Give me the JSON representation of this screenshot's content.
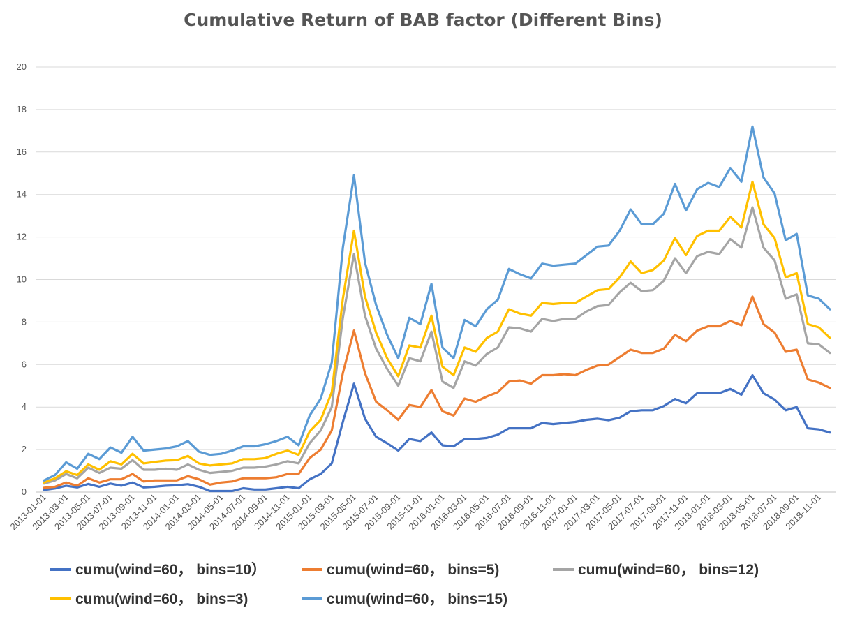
{
  "chart_data": {
    "type": "line",
    "title": "Cumulative Return of BAB factor (Different Bins)",
    "xlabel": "",
    "ylabel": "",
    "ylim": [
      0,
      20
    ],
    "yticks": [
      0,
      2,
      4,
      6,
      8,
      10,
      12,
      14,
      16,
      18,
      20
    ],
    "grid": true,
    "legend_position": "bottom",
    "x": [
      "2013-01-01",
      "2013-02-01",
      "2013-03-01",
      "2013-04-01",
      "2013-05-01",
      "2013-06-01",
      "2013-07-01",
      "2013-08-01",
      "2013-09-01",
      "2013-10-01",
      "2013-11-01",
      "2013-12-01",
      "2014-01-01",
      "2014-02-01",
      "2014-03-01",
      "2014-04-01",
      "2014-05-01",
      "2014-06-01",
      "2014-07-01",
      "2014-08-01",
      "2014-09-01",
      "2014-10-01",
      "2014-11-01",
      "2014-12-01",
      "2015-01-01",
      "2015-02-01",
      "2015-03-01",
      "2015-04-01",
      "2015-05-01",
      "2015-06-01",
      "2015-07-01",
      "2015-08-01",
      "2015-09-01",
      "2015-10-01",
      "2015-11-01",
      "2015-12-01",
      "2016-01-01",
      "2016-02-01",
      "2016-03-01",
      "2016-04-01",
      "2016-05-01",
      "2016-06-01",
      "2016-07-01",
      "2016-08-01",
      "2016-09-01",
      "2016-10-01",
      "2016-11-01",
      "2016-12-01",
      "2017-01-01",
      "2017-02-01",
      "2017-03-01",
      "2017-04-01",
      "2017-05-01",
      "2017-06-01",
      "2017-07-01",
      "2017-08-01",
      "2017-09-01",
      "2017-10-01",
      "2017-11-01",
      "2017-12-01",
      "2018-01-01",
      "2018-02-01",
      "2018-03-01",
      "2018-04-01",
      "2018-05-01",
      "2018-06-01",
      "2018-07-01",
      "2018-08-01",
      "2018-09-01",
      "2018-10-01",
      "2018-11-01",
      "2018-12-01"
    ],
    "x_tick_labels": [
      "2013-01-01",
      "2013-03-01",
      "2013-05-01",
      "2013-07-01",
      "2013-09-01",
      "2013-11-01",
      "2014-01-01",
      "2014-03-01",
      "2014-05-01",
      "2014-07-01",
      "2014-09-01",
      "2014-11-01",
      "2015-01-01",
      "2015-03-01",
      "2015-05-01",
      "2015-07-01",
      "2015-09-01",
      "2015-11-01",
      "2016-01-01",
      "2016-03-01",
      "2016-05-01",
      "2016-07-01",
      "2016-09-01",
      "2016-11-01",
      "2017-01-01",
      "2017-03-01",
      "2017-05-01",
      "2017-07-01",
      "2017-09-01",
      "2017-11-01",
      "2018-01-01",
      "2018-03-01",
      "2018-05-01",
      "2018-07-01",
      "2018-09-01",
      "2018-11-01"
    ],
    "series": [
      {
        "name": "cumu(wind=60， bins=10）",
        "color": "#4472C4",
        "values": [
          0.1,
          0.17,
          0.3,
          0.22,
          0.38,
          0.25,
          0.4,
          0.3,
          0.45,
          0.22,
          0.25,
          0.3,
          0.32,
          0.37,
          0.25,
          0.05,
          0.05,
          0.05,
          0.18,
          0.12,
          0.12,
          0.18,
          0.25,
          0.18,
          0.6,
          0.85,
          1.35,
          3.3,
          5.1,
          3.45,
          2.6,
          2.3,
          1.95,
          2.5,
          2.4,
          2.8,
          2.2,
          2.15,
          2.5,
          2.5,
          2.55,
          2.7,
          3.0,
          3.0,
          3.0,
          3.25,
          3.2,
          3.25,
          3.3,
          3.4,
          3.45,
          3.38,
          3.5,
          3.8,
          3.85,
          3.85,
          4.05,
          4.38,
          4.18,
          4.65,
          4.65,
          4.65,
          4.85,
          4.58,
          5.5,
          4.65,
          4.35,
          3.85,
          4.0,
          3.0,
          2.95,
          2.8
        ]
      },
      {
        "name": "cumu(wind=60， bins=5)",
        "color": "#ED7D31",
        "values": [
          0.2,
          0.25,
          0.45,
          0.3,
          0.65,
          0.45,
          0.6,
          0.6,
          0.85,
          0.5,
          0.55,
          0.55,
          0.55,
          0.75,
          0.6,
          0.35,
          0.45,
          0.5,
          0.65,
          0.65,
          0.65,
          0.7,
          0.85,
          0.85,
          1.6,
          2.0,
          2.9,
          5.6,
          7.6,
          5.6,
          4.25,
          3.85,
          3.4,
          4.1,
          4.0,
          4.8,
          3.8,
          3.6,
          4.4,
          4.25,
          4.5,
          4.7,
          5.2,
          5.25,
          5.1,
          5.5,
          5.5,
          5.55,
          5.5,
          5.75,
          5.95,
          6.0,
          6.35,
          6.7,
          6.55,
          6.55,
          6.75,
          7.4,
          7.1,
          7.6,
          7.8,
          7.8,
          8.05,
          7.85,
          9.2,
          7.9,
          7.5,
          6.6,
          6.7,
          5.3,
          5.15,
          4.9
        ]
      },
      {
        "name": "cumu(wind=60， bins=12)",
        "color": "#A5A5A5",
        "values": [
          0.4,
          0.55,
          0.85,
          0.65,
          1.15,
          0.9,
          1.15,
          1.1,
          1.5,
          1.05,
          1.05,
          1.1,
          1.05,
          1.3,
          1.05,
          0.9,
          0.95,
          1.0,
          1.15,
          1.15,
          1.2,
          1.3,
          1.45,
          1.35,
          2.3,
          2.9,
          4.0,
          8.2,
          11.2,
          8.3,
          6.75,
          5.8,
          5.0,
          6.3,
          6.15,
          7.55,
          5.2,
          4.9,
          6.15,
          5.95,
          6.5,
          6.8,
          7.75,
          7.7,
          7.55,
          8.15,
          8.05,
          8.15,
          8.15,
          8.5,
          8.75,
          8.8,
          9.4,
          9.85,
          9.45,
          9.5,
          9.95,
          11.0,
          10.3,
          11.1,
          11.3,
          11.2,
          11.9,
          11.5,
          13.4,
          11.5,
          10.9,
          9.1,
          9.3,
          7.0,
          6.95,
          6.55
        ]
      },
      {
        "name": "cumu(wind=60， bins=3)",
        "color": "#FFC000",
        "values": [
          0.45,
          0.65,
          0.98,
          0.8,
          1.3,
          1.05,
          1.45,
          1.3,
          1.8,
          1.35,
          1.42,
          1.48,
          1.5,
          1.7,
          1.35,
          1.25,
          1.3,
          1.35,
          1.55,
          1.55,
          1.6,
          1.8,
          1.95,
          1.75,
          2.85,
          3.4,
          4.7,
          9.1,
          12.3,
          9.2,
          7.5,
          6.3,
          5.45,
          6.9,
          6.8,
          8.3,
          5.9,
          5.5,
          6.8,
          6.6,
          7.25,
          7.55,
          8.6,
          8.4,
          8.3,
          8.9,
          8.85,
          8.9,
          8.9,
          9.2,
          9.5,
          9.55,
          10.1,
          10.85,
          10.3,
          10.45,
          10.9,
          11.95,
          11.15,
          12.05,
          12.3,
          12.3,
          12.95,
          12.45,
          14.6,
          12.6,
          11.95,
          10.1,
          10.3,
          7.9,
          7.75,
          7.25
        ]
      },
      {
        "name": "cumu(wind=60， bins=15)",
        "color": "#5B9BD5",
        "values": [
          0.55,
          0.8,
          1.4,
          1.1,
          1.8,
          1.55,
          2.1,
          1.85,
          2.6,
          1.95,
          2.0,
          2.05,
          2.15,
          2.4,
          1.9,
          1.75,
          1.8,
          1.95,
          2.15,
          2.15,
          2.25,
          2.4,
          2.6,
          2.2,
          3.6,
          4.4,
          6.1,
          11.5,
          14.9,
          10.8,
          8.8,
          7.4,
          6.3,
          8.2,
          7.9,
          9.8,
          6.8,
          6.3,
          8.1,
          7.8,
          8.6,
          9.05,
          10.5,
          10.25,
          10.05,
          10.75,
          10.65,
          10.7,
          10.75,
          11.15,
          11.55,
          11.6,
          12.3,
          13.3,
          12.6,
          12.6,
          13.1,
          14.5,
          13.25,
          14.25,
          14.55,
          14.35,
          15.25,
          14.6,
          17.2,
          14.8,
          14.05,
          11.85,
          12.15,
          9.25,
          9.1,
          8.6
        ]
      }
    ]
  }
}
